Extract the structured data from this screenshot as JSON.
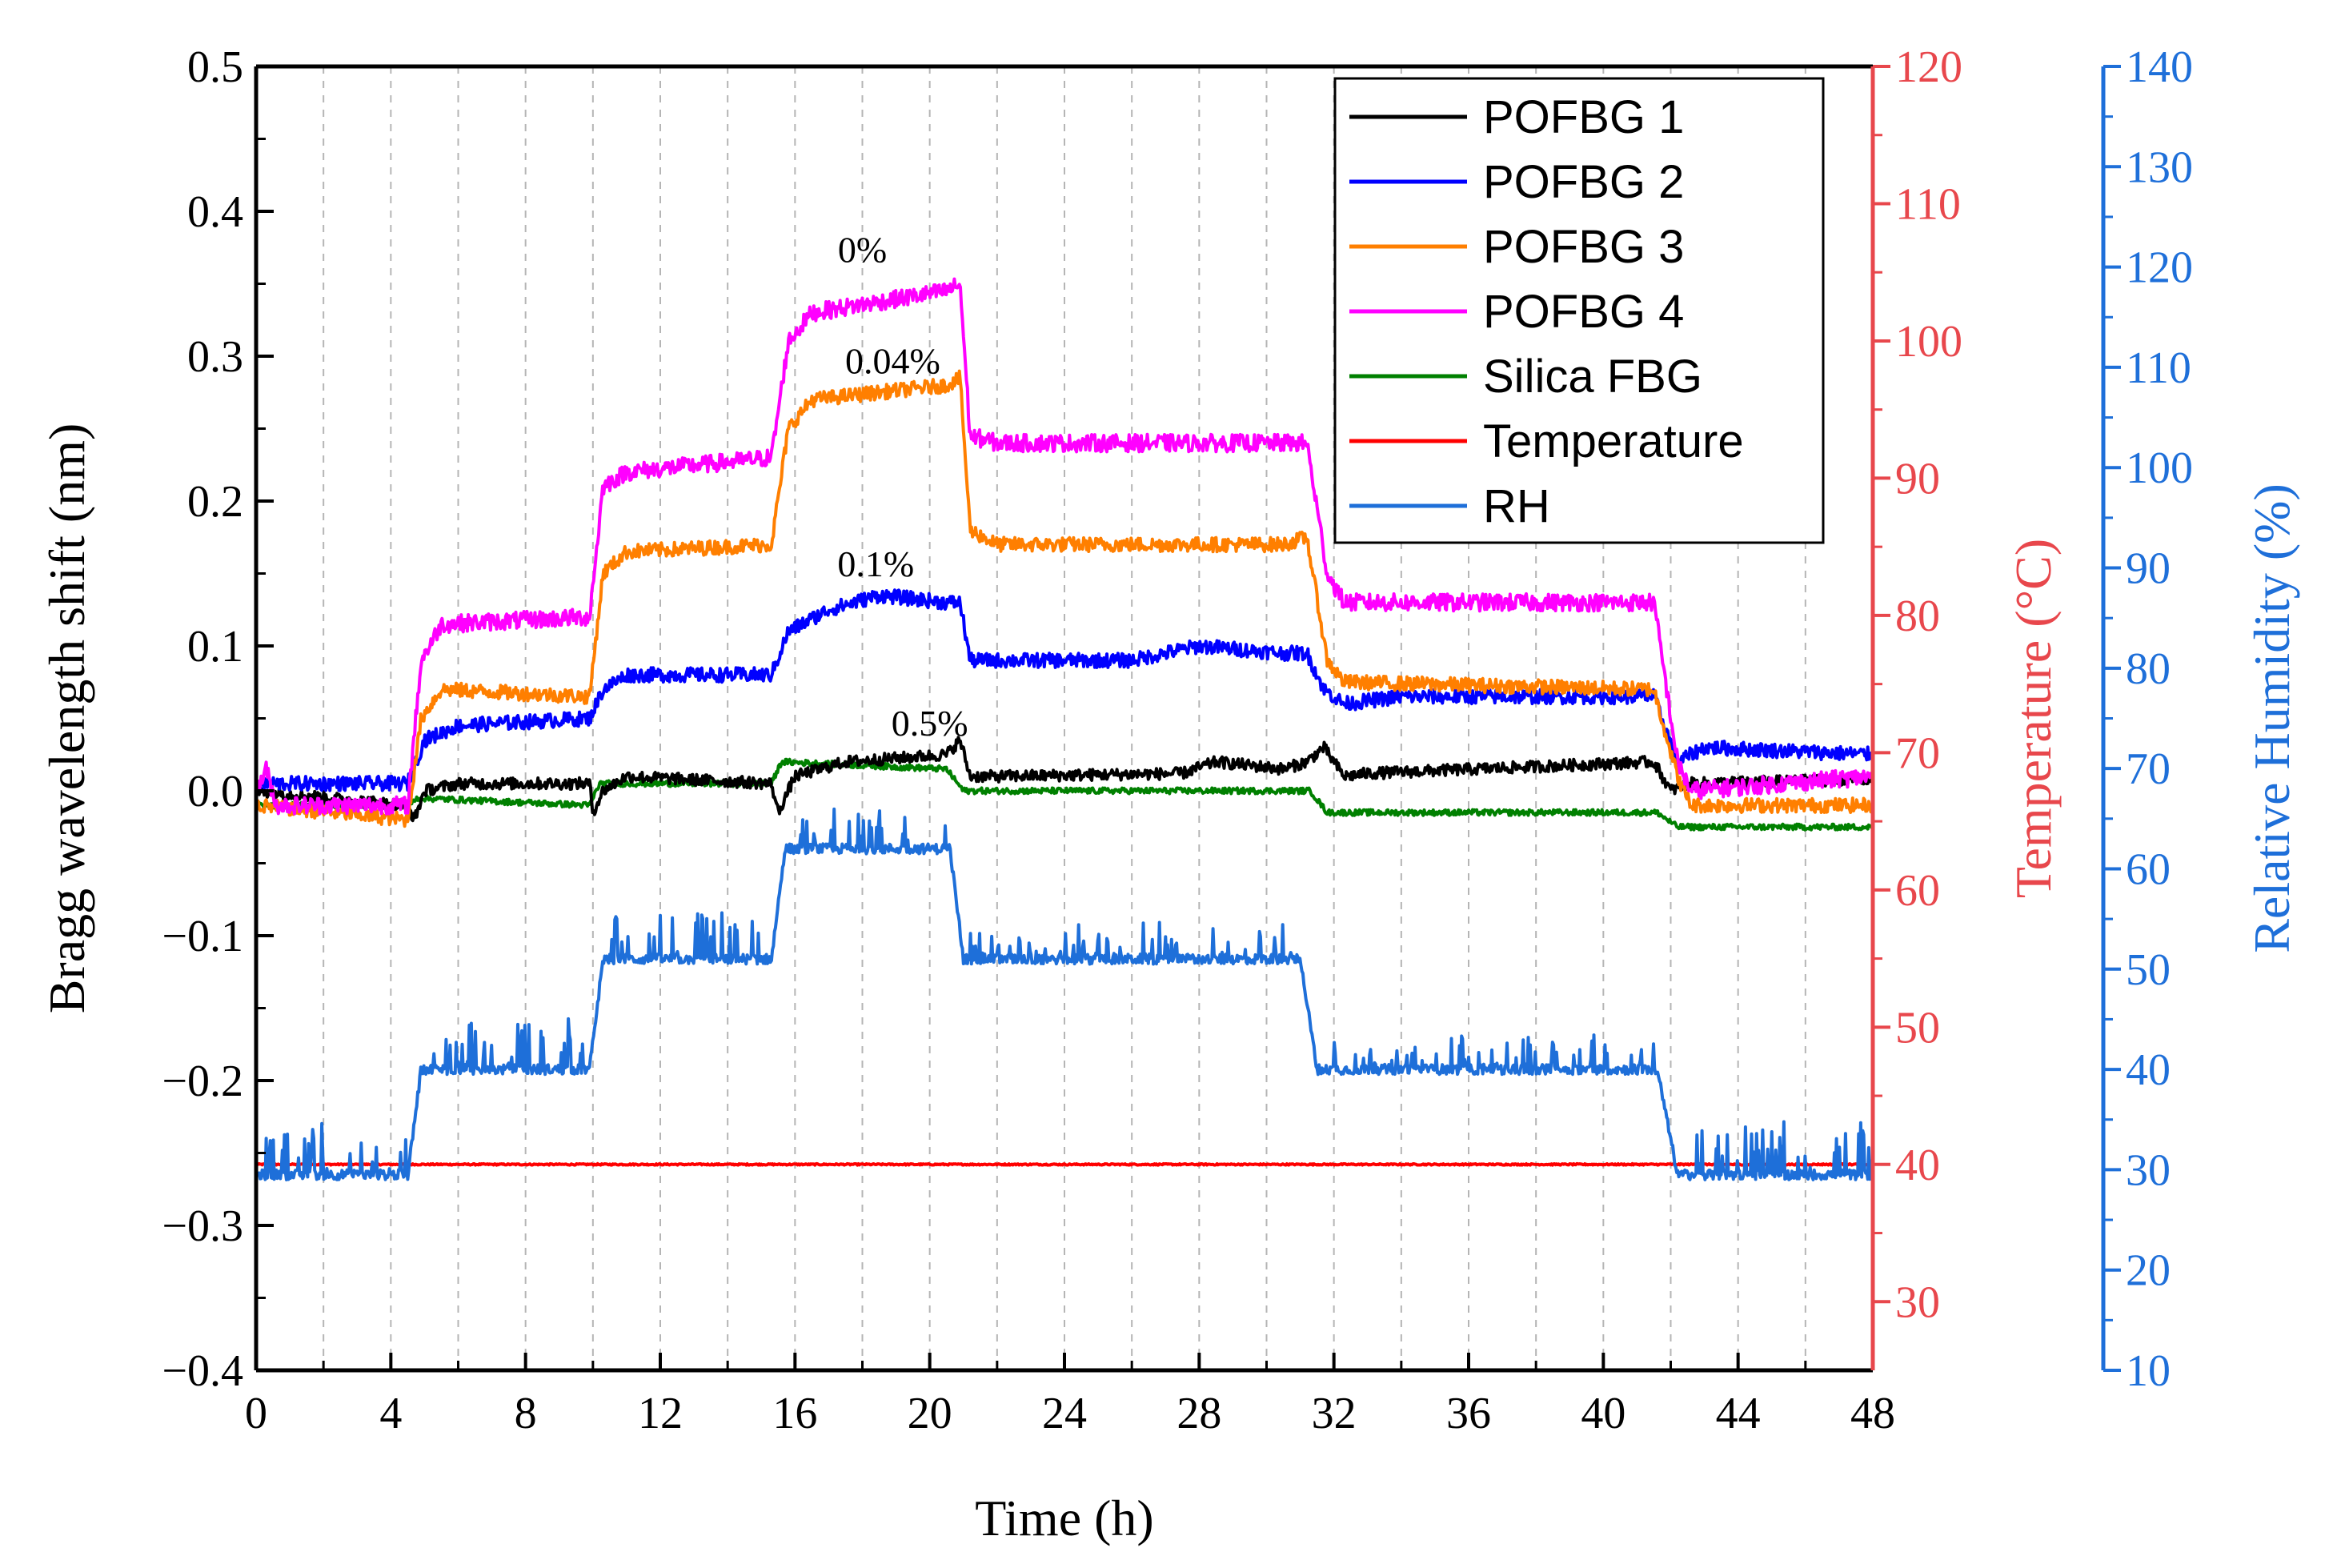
{
  "chart_data": {
    "type": "line",
    "xlabel": "Time (h)",
    "ylabel_left": "Bragg wavelength shift (nm)",
    "ylabel_right_temp": "Temperature (°C)",
    "ylabel_right_rh": "Relative Humidity (%)",
    "xlim": [
      0,
      48
    ],
    "ylim_left": [
      -0.4,
      0.5
    ],
    "ylim_temp": [
      25,
      120
    ],
    "ylim_rh": [
      10,
      140
    ],
    "x_ticks": [
      0,
      4,
      8,
      12,
      16,
      20,
      24,
      28,
      32,
      36,
      40,
      44,
      48
    ],
    "x_tick_labels": [
      "0",
      "4",
      "8",
      "12",
      "16",
      "20",
      "24",
      "28",
      "32",
      "36",
      "40",
      "44",
      "48"
    ],
    "y_left_ticks": [
      0.5,
      0.4,
      0.3,
      0.2,
      0.1,
      0.0,
      -0.1,
      -0.2,
      -0.3,
      -0.4
    ],
    "y_left_tick_labels": [
      "0.5",
      "0.4",
      "0.3",
      "0.2",
      "0.1",
      "0.0",
      "−0.1",
      "−0.2",
      "−0.3",
      "−0.4"
    ],
    "y_temp_ticks": [
      120,
      110,
      100,
      90,
      80,
      70,
      60,
      50,
      40,
      30
    ],
    "y_temp_tick_labels": [
      "120",
      "110",
      "100",
      "90",
      "80",
      "70",
      "60",
      "50",
      "40",
      "30"
    ],
    "y_rh_ticks": [
      140,
      130,
      120,
      110,
      100,
      90,
      80,
      70,
      60,
      50,
      40,
      30,
      20,
      10
    ],
    "y_rh_tick_labels": [
      "140",
      "130",
      "120",
      "110",
      "100",
      "90",
      "80",
      "70",
      "60",
      "50",
      "40",
      "30",
      "20",
      "10"
    ],
    "grid": "vertical-dashed-every-2h",
    "legend_position": "top-right",
    "series": [
      {
        "name": "POFBG 1",
        "axis": "left",
        "color": "#000000",
        "noise": 0.004,
        "x": [
          0,
          4.5,
          4.7,
          5.0,
          6.0,
          9.9,
          10.0,
          10.3,
          11.0,
          15.3,
          15.5,
          16.0,
          17.5,
          20.5,
          20.9,
          21.2,
          22.0,
          27.5,
          28.5,
          30.5,
          31.2,
          31.7,
          32.3,
          33.0,
          41.5,
          42.0,
          42.5,
          48
        ],
        "y": [
          0.0,
          -0.01,
          -0.02,
          0.0,
          0.005,
          0.005,
          -0.015,
          0.0,
          0.01,
          0.005,
          -0.015,
          0.01,
          0.02,
          0.025,
          0.035,
          0.01,
          0.01,
          0.012,
          0.02,
          0.015,
          0.02,
          0.03,
          0.01,
          0.012,
          0.02,
          0.0,
          0.005,
          0.008
        ]
      },
      {
        "name": "POFBG 2",
        "axis": "left",
        "color": "#0000ff",
        "noise": 0.005,
        "x": [
          0,
          4.5,
          5.0,
          6.0,
          9.9,
          10.3,
          11.0,
          15.3,
          15.8,
          17.0,
          18.5,
          20.5,
          20.9,
          21.2,
          22.0,
          26.0,
          28.0,
          30.5,
          31.2,
          31.7,
          32.3,
          34.0,
          41.5,
          42.2,
          43.0,
          48
        ],
        "y": [
          0.005,
          0.005,
          0.035,
          0.045,
          0.05,
          0.07,
          0.08,
          0.08,
          0.11,
          0.125,
          0.135,
          0.13,
          0.13,
          0.09,
          0.09,
          0.09,
          0.1,
          0.095,
          0.095,
          0.07,
          0.06,
          0.065,
          0.065,
          0.02,
          0.03,
          0.025
        ]
      },
      {
        "name": "POFBG 3",
        "axis": "left",
        "color": "#ff7f00",
        "noise": 0.005,
        "x": [
          0,
          4.5,
          4.9,
          5.5,
          9.9,
          10.3,
          11.0,
          15.3,
          15.8,
          16.5,
          20.5,
          20.9,
          21.2,
          22.0,
          30.5,
          31.2,
          31.8,
          32.3,
          41.5,
          42.2,
          42.6,
          48
        ],
        "y": [
          -0.01,
          -0.02,
          0.05,
          0.07,
          0.065,
          0.15,
          0.165,
          0.17,
          0.25,
          0.27,
          0.28,
          0.285,
          0.18,
          0.17,
          0.17,
          0.175,
          0.09,
          0.075,
          0.07,
          0.01,
          -0.01,
          -0.01
        ]
      },
      {
        "name": "POFBG 4",
        "axis": "left",
        "color": "#ff00ff",
        "noise": 0.006,
        "x": [
          0,
          0.3,
          0.6,
          4.5,
          4.9,
          5.5,
          9.9,
          10.3,
          11.0,
          15.3,
          15.8,
          16.5,
          20.5,
          20.9,
          21.2,
          22.0,
          30.5,
          31.2,
          31.8,
          32.3,
          41.5,
          42.2,
          42.6,
          48
        ],
        "y": [
          0.0,
          0.015,
          -0.01,
          -0.01,
          0.09,
          0.115,
          0.12,
          0.21,
          0.22,
          0.23,
          0.31,
          0.33,
          0.345,
          0.35,
          0.245,
          0.24,
          0.24,
          0.24,
          0.15,
          0.13,
          0.13,
          0.02,
          0.0,
          0.01
        ]
      },
      {
        "name": "Silica FBG",
        "axis": "left",
        "color": "#008000",
        "noise": 0.002,
        "x": [
          0,
          4.5,
          4.8,
          9.9,
          10.2,
          15.3,
          15.6,
          20.5,
          21.0,
          31.3,
          31.8,
          41.6,
          42.2,
          48
        ],
        "y": [
          -0.01,
          -0.01,
          -0.005,
          -0.01,
          0.005,
          0.005,
          0.02,
          0.015,
          0.0,
          0.0,
          -0.015,
          -0.015,
          -0.025,
          -0.025
        ]
      },
      {
        "name": "Temperature",
        "axis": "temp",
        "color": "#ff0000",
        "noise": 0.05,
        "x": [
          0,
          48
        ],
        "y": [
          40,
          40
        ]
      },
      {
        "name": "RH",
        "axis": "rh",
        "color": "#1e6fd9",
        "noise": 0.5,
        "x": [
          0,
          4.5,
          4.9,
          5.2,
          9.9,
          10.3,
          10.6,
          15.3,
          15.7,
          16.0,
          20.6,
          21.0,
          21.3,
          31.0,
          31.5,
          31.8,
          41.6,
          42.2,
          42.5,
          48
        ],
        "y": [
          29.5,
          29.5,
          40,
          40,
          40,
          51,
          51,
          51,
          62,
          62,
          62,
          51,
          51,
          51,
          40,
          40,
          40,
          29.5,
          29.5,
          29.5
        ],
        "spikes": [
          {
            "x0": 0,
            "x1": 4.5,
            "amp": 3
          },
          {
            "x0": 5.0,
            "x1": 9.9,
            "amp": 3
          },
          {
            "x0": 10.5,
            "x1": 15.3,
            "amp": 3
          },
          {
            "x0": 16.0,
            "x1": 20.6,
            "amp": 2.5
          },
          {
            "x0": 21.2,
            "x1": 31.0,
            "amp": 2
          },
          {
            "x0": 31.8,
            "x1": 41.6,
            "amp": 2
          },
          {
            "x0": 42.5,
            "x1": 48,
            "amp": 3
          }
        ]
      }
    ],
    "annotations": [
      {
        "text": "0%",
        "x": 18.0,
        "y": 0.365
      },
      {
        "text": "0.04%",
        "x": 18.9,
        "y": 0.288
      },
      {
        "text": "0.1%",
        "x": 18.4,
        "y": 0.148
      },
      {
        "text": "0.5%",
        "x": 20.0,
        "y": 0.038
      }
    ],
    "axis_colors": {
      "left": "#000000",
      "temp": "#e8474c",
      "rh": "#1e6fd9"
    }
  }
}
